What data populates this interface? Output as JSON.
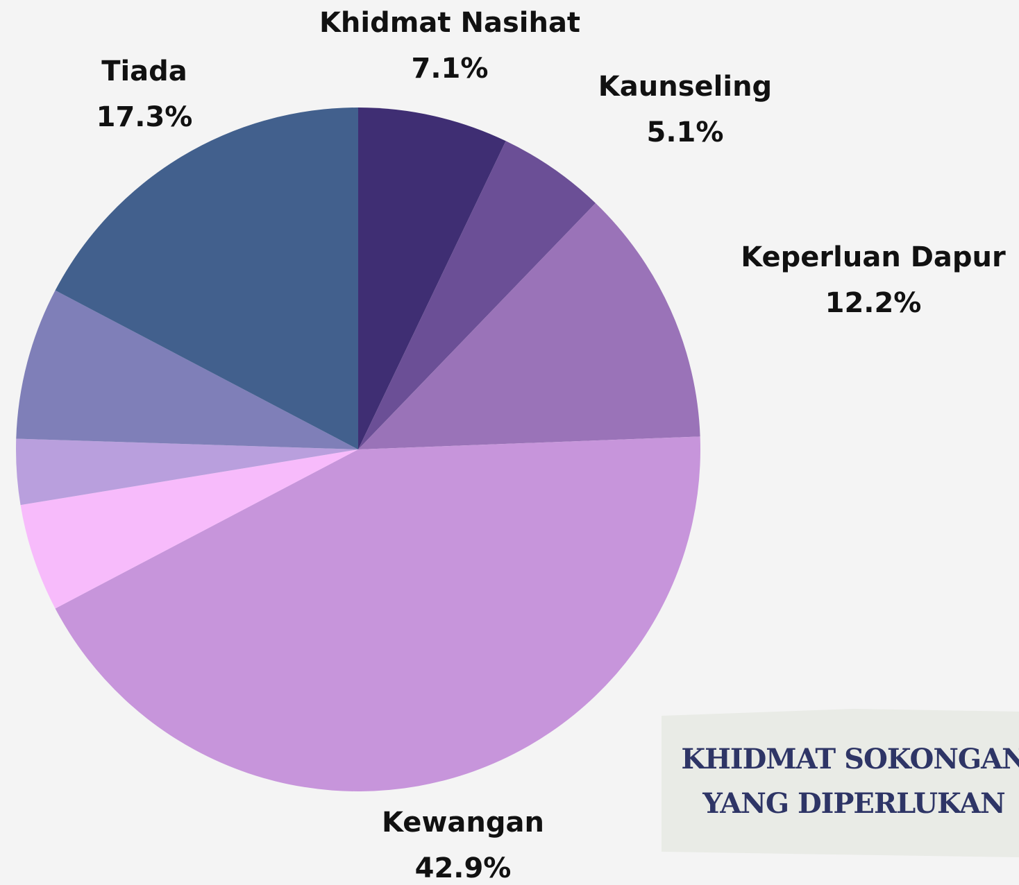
{
  "chart_data": {
    "type": "pie",
    "title": [
      "KHIDMAT SOKONGAN",
      "YANG DIPERLUKAN"
    ],
    "categories": [
      "Khidmat Nasihat",
      "Kaunseling",
      "Keperluan Dapur",
      "Kewangan",
      null,
      null,
      null,
      "Tiada"
    ],
    "values": [
      7.1,
      5.1,
      12.2,
      42.9,
      5.1,
      3.1,
      7.2,
      17.3
    ],
    "value_labels": [
      "7.1%",
      "5.1%",
      "12.2%",
      "42.9%",
      null,
      null,
      null,
      "17.3%"
    ],
    "colors": [
      "#3f2e73",
      "#6b4f96",
      "#9a73b8",
      "#c795db",
      "#f7bbfb",
      "#b99fdd",
      "#7f7fb8",
      "#42608d"
    ]
  }
}
